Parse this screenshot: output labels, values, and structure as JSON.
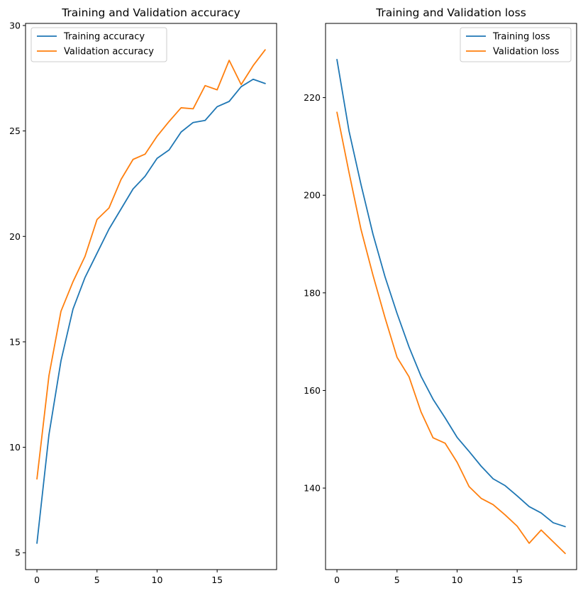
{
  "chart_data": [
    {
      "type": "line",
      "title": "Training and Validation accuracy",
      "xlabel": "",
      "ylabel": "",
      "xlim": [
        -0.95,
        19.95
      ],
      "ylim": [
        4.2,
        30.1
      ],
      "xticks": [
        0,
        5,
        10,
        15
      ],
      "yticks": [
        5,
        10,
        15,
        20,
        25,
        30
      ],
      "grid": false,
      "legend_position": "upper-left",
      "x": [
        0,
        1,
        2,
        3,
        4,
        5,
        6,
        7,
        8,
        9,
        10,
        11,
        12,
        13,
        14,
        15,
        16,
        17,
        18,
        19
      ],
      "series": [
        {
          "name": "Training accuracy",
          "color": "#1f77b4",
          "values": [
            5.45,
            10.6,
            14.1,
            16.55,
            18.05,
            19.2,
            20.35,
            21.3,
            22.25,
            22.85,
            23.7,
            24.1,
            24.95,
            25.4,
            25.5,
            26.15,
            26.4,
            27.1,
            27.45,
            27.25
          ]
        },
        {
          "name": "Validation accuracy",
          "color": "#ff7f0e",
          "values": [
            8.5,
            13.4,
            16.45,
            17.85,
            19.05,
            20.8,
            21.35,
            22.7,
            23.65,
            23.9,
            24.75,
            25.45,
            26.1,
            26.05,
            27.15,
            26.95,
            28.35,
            27.2,
            28.1,
            28.85
          ]
        }
      ]
    },
    {
      "type": "line",
      "title": "Training and Validation loss",
      "xlabel": "",
      "ylabel": "",
      "xlim": [
        -0.95,
        19.95
      ],
      "ylim": [
        123.3,
        235.2
      ],
      "xticks": [
        0,
        5,
        10,
        15
      ],
      "yticks": [
        140,
        160,
        180,
        200,
        220
      ],
      "grid": false,
      "legend_position": "upper-right",
      "x": [
        0,
        1,
        2,
        3,
        4,
        5,
        6,
        7,
        8,
        9,
        10,
        11,
        12,
        13,
        14,
        15,
        16,
        17,
        18,
        19
      ],
      "series": [
        {
          "name": "Training loss",
          "color": "#1f77b4",
          "values": [
            227.8,
            213.2,
            202.2,
            192.0,
            183.3,
            175.8,
            168.9,
            162.9,
            158.2,
            154.4,
            150.4,
            147.5,
            144.5,
            141.9,
            140.5,
            138.4,
            136.2,
            134.9,
            132.9,
            132.1
          ]
        },
        {
          "name": "Validation loss",
          "color": "#ff7f0e",
          "values": [
            217.0,
            204.7,
            193.0,
            183.6,
            174.9,
            166.8,
            162.8,
            155.6,
            150.3,
            149.2,
            145.3,
            140.3,
            137.9,
            136.6,
            134.5,
            132.2,
            128.7,
            131.4,
            129.0,
            126.6
          ]
        }
      ]
    }
  ]
}
